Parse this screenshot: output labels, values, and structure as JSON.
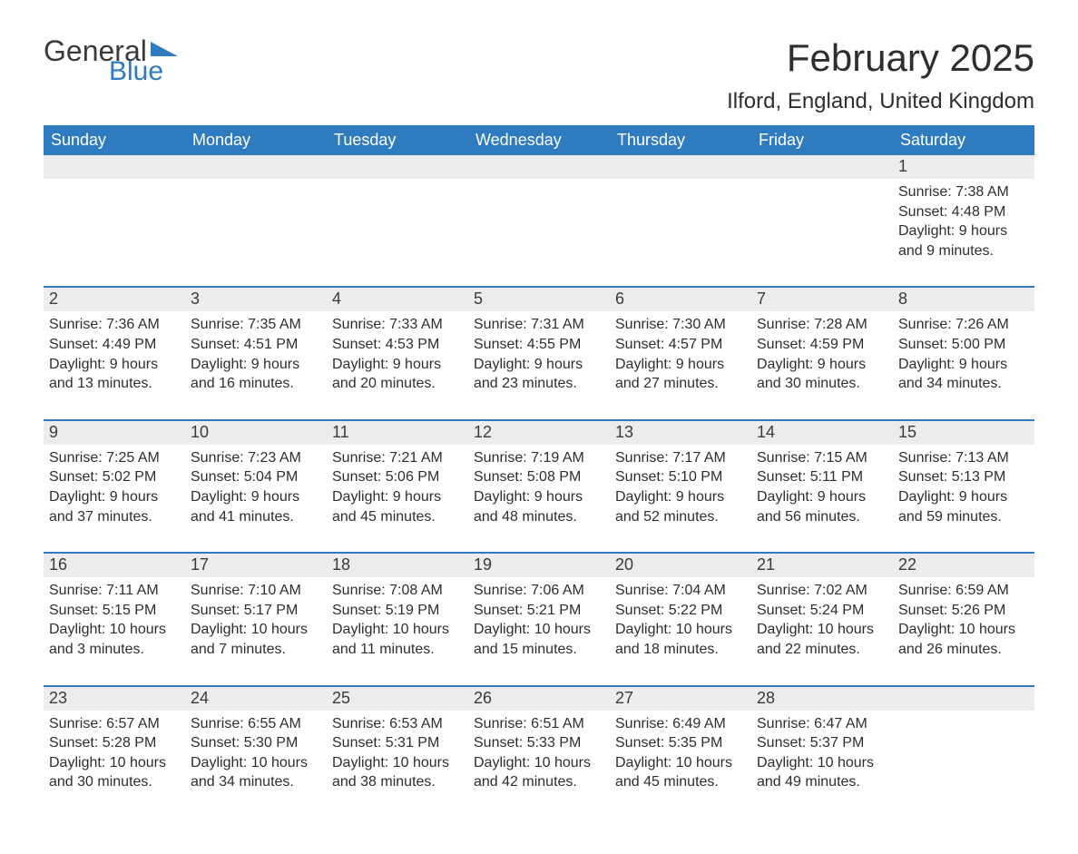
{
  "logo": {
    "text1": "General",
    "text2": "Blue",
    "triangle_color": "#2f7bbf"
  },
  "title": "February 2025",
  "location": "Ilford, England, United Kingdom",
  "colors": {
    "header_bg": "#2f7bbf",
    "header_fg": "#ffffff",
    "daynum_bg": "#ececec",
    "text": "#2e2e2e",
    "rule": "#2f7bbf"
  },
  "day_headers": [
    "Sunday",
    "Monday",
    "Tuesday",
    "Wednesday",
    "Thursday",
    "Friday",
    "Saturday"
  ],
  "weeks": [
    [
      {
        "n": "",
        "sunrise": "",
        "sunset": "",
        "daylight": ""
      },
      {
        "n": "",
        "sunrise": "",
        "sunset": "",
        "daylight": ""
      },
      {
        "n": "",
        "sunrise": "",
        "sunset": "",
        "daylight": ""
      },
      {
        "n": "",
        "sunrise": "",
        "sunset": "",
        "daylight": ""
      },
      {
        "n": "",
        "sunrise": "",
        "sunset": "",
        "daylight": ""
      },
      {
        "n": "",
        "sunrise": "",
        "sunset": "",
        "daylight": ""
      },
      {
        "n": "1",
        "sunrise": "Sunrise: 7:38 AM",
        "sunset": "Sunset: 4:48 PM",
        "daylight": "Daylight: 9 hours and 9 minutes."
      }
    ],
    [
      {
        "n": "2",
        "sunrise": "Sunrise: 7:36 AM",
        "sunset": "Sunset: 4:49 PM",
        "daylight": "Daylight: 9 hours and 13 minutes."
      },
      {
        "n": "3",
        "sunrise": "Sunrise: 7:35 AM",
        "sunset": "Sunset: 4:51 PM",
        "daylight": "Daylight: 9 hours and 16 minutes."
      },
      {
        "n": "4",
        "sunrise": "Sunrise: 7:33 AM",
        "sunset": "Sunset: 4:53 PM",
        "daylight": "Daylight: 9 hours and 20 minutes."
      },
      {
        "n": "5",
        "sunrise": "Sunrise: 7:31 AM",
        "sunset": "Sunset: 4:55 PM",
        "daylight": "Daylight: 9 hours and 23 minutes."
      },
      {
        "n": "6",
        "sunrise": "Sunrise: 7:30 AM",
        "sunset": "Sunset: 4:57 PM",
        "daylight": "Daylight: 9 hours and 27 minutes."
      },
      {
        "n": "7",
        "sunrise": "Sunrise: 7:28 AM",
        "sunset": "Sunset: 4:59 PM",
        "daylight": "Daylight: 9 hours and 30 minutes."
      },
      {
        "n": "8",
        "sunrise": "Sunrise: 7:26 AM",
        "sunset": "Sunset: 5:00 PM",
        "daylight": "Daylight: 9 hours and 34 minutes."
      }
    ],
    [
      {
        "n": "9",
        "sunrise": "Sunrise: 7:25 AM",
        "sunset": "Sunset: 5:02 PM",
        "daylight": "Daylight: 9 hours and 37 minutes."
      },
      {
        "n": "10",
        "sunrise": "Sunrise: 7:23 AM",
        "sunset": "Sunset: 5:04 PM",
        "daylight": "Daylight: 9 hours and 41 minutes."
      },
      {
        "n": "11",
        "sunrise": "Sunrise: 7:21 AM",
        "sunset": "Sunset: 5:06 PM",
        "daylight": "Daylight: 9 hours and 45 minutes."
      },
      {
        "n": "12",
        "sunrise": "Sunrise: 7:19 AM",
        "sunset": "Sunset: 5:08 PM",
        "daylight": "Daylight: 9 hours and 48 minutes."
      },
      {
        "n": "13",
        "sunrise": "Sunrise: 7:17 AM",
        "sunset": "Sunset: 5:10 PM",
        "daylight": "Daylight: 9 hours and 52 minutes."
      },
      {
        "n": "14",
        "sunrise": "Sunrise: 7:15 AM",
        "sunset": "Sunset: 5:11 PM",
        "daylight": "Daylight: 9 hours and 56 minutes."
      },
      {
        "n": "15",
        "sunrise": "Sunrise: 7:13 AM",
        "sunset": "Sunset: 5:13 PM",
        "daylight": "Daylight: 9 hours and 59 minutes."
      }
    ],
    [
      {
        "n": "16",
        "sunrise": "Sunrise: 7:11 AM",
        "sunset": "Sunset: 5:15 PM",
        "daylight": "Daylight: 10 hours and 3 minutes."
      },
      {
        "n": "17",
        "sunrise": "Sunrise: 7:10 AM",
        "sunset": "Sunset: 5:17 PM",
        "daylight": "Daylight: 10 hours and 7 minutes."
      },
      {
        "n": "18",
        "sunrise": "Sunrise: 7:08 AM",
        "sunset": "Sunset: 5:19 PM",
        "daylight": "Daylight: 10 hours and 11 minutes."
      },
      {
        "n": "19",
        "sunrise": "Sunrise: 7:06 AM",
        "sunset": "Sunset: 5:21 PM",
        "daylight": "Daylight: 10 hours and 15 minutes."
      },
      {
        "n": "20",
        "sunrise": "Sunrise: 7:04 AM",
        "sunset": "Sunset: 5:22 PM",
        "daylight": "Daylight: 10 hours and 18 minutes."
      },
      {
        "n": "21",
        "sunrise": "Sunrise: 7:02 AM",
        "sunset": "Sunset: 5:24 PM",
        "daylight": "Daylight: 10 hours and 22 minutes."
      },
      {
        "n": "22",
        "sunrise": "Sunrise: 6:59 AM",
        "sunset": "Sunset: 5:26 PM",
        "daylight": "Daylight: 10 hours and 26 minutes."
      }
    ],
    [
      {
        "n": "23",
        "sunrise": "Sunrise: 6:57 AM",
        "sunset": "Sunset: 5:28 PM",
        "daylight": "Daylight: 10 hours and 30 minutes."
      },
      {
        "n": "24",
        "sunrise": "Sunrise: 6:55 AM",
        "sunset": "Sunset: 5:30 PM",
        "daylight": "Daylight: 10 hours and 34 minutes."
      },
      {
        "n": "25",
        "sunrise": "Sunrise: 6:53 AM",
        "sunset": "Sunset: 5:31 PM",
        "daylight": "Daylight: 10 hours and 38 minutes."
      },
      {
        "n": "26",
        "sunrise": "Sunrise: 6:51 AM",
        "sunset": "Sunset: 5:33 PM",
        "daylight": "Daylight: 10 hours and 42 minutes."
      },
      {
        "n": "27",
        "sunrise": "Sunrise: 6:49 AM",
        "sunset": "Sunset: 5:35 PM",
        "daylight": "Daylight: 10 hours and 45 minutes."
      },
      {
        "n": "28",
        "sunrise": "Sunrise: 6:47 AM",
        "sunset": "Sunset: 5:37 PM",
        "daylight": "Daylight: 10 hours and 49 minutes."
      },
      {
        "n": "",
        "sunrise": "",
        "sunset": "",
        "daylight": ""
      }
    ]
  ]
}
